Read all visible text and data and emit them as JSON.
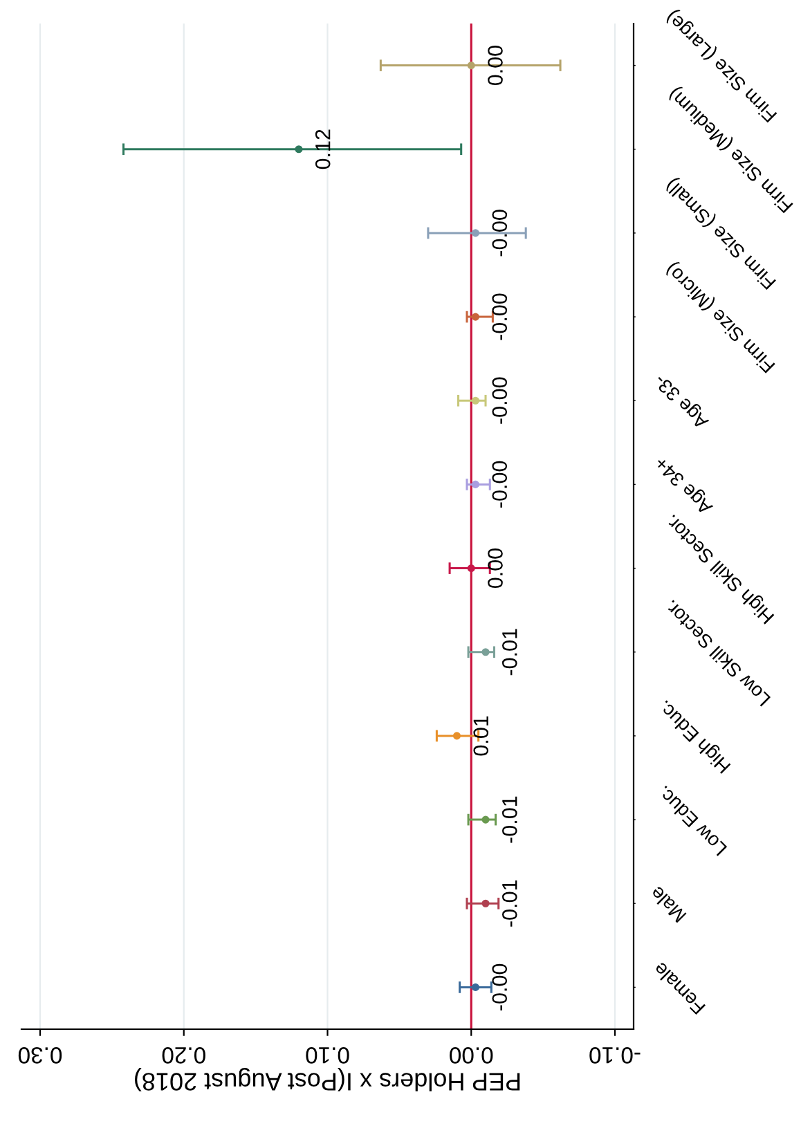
{
  "chart_data": {
    "type": "scatter",
    "orientation": "horizontal",
    "marker": "circle",
    "xlabel": "PEP Holders x I(Post August 2018)",
    "categories": [
      "Firm Size (Large)",
      "Firm Size (Medium)",
      "Firm Size (Small)",
      "Firm Size (Micro)",
      "Age 33-",
      "Age 34+",
      "High Skill Sector.",
      "Low Skill Sector.",
      "High Educ.",
      "Low Educ.",
      "Male",
      "Female"
    ],
    "values": [
      0.0,
      0.12,
      -0.003,
      -0.003,
      -0.003,
      -0.003,
      0.0,
      -0.01,
      0.01,
      -0.01,
      -0.01,
      -0.003
    ],
    "value_labels": [
      "0.00",
      "0.12",
      "-0.00",
      "-0.00",
      "-0.00",
      "-0.00",
      "0.00",
      "-0.01",
      "0.01",
      "-0.01",
      "-0.01",
      "-0.00"
    ],
    "errors": [
      [
        -0.062,
        0.063
      ],
      [
        0.007,
        0.242
      ],
      [
        -0.038,
        0.03
      ],
      [
        -0.015,
        0.003
      ],
      [
        -0.01,
        0.009
      ],
      [
        -0.013,
        0.003
      ],
      [
        -0.013,
        0.015
      ],
      [
        -0.016,
        0.002
      ],
      [
        -0.005,
        0.024
      ],
      [
        -0.017,
        0.002
      ],
      [
        -0.019,
        0.003
      ],
      [
        -0.014,
        0.008
      ]
    ],
    "colors": [
      "#b5a36a",
      "#2e7a5e",
      "#8aa0b8",
      "#c8643c",
      "#c8c87a",
      "#a99ee0",
      "#c8184a",
      "#7aa098",
      "#e8902a",
      "#6a9a50",
      "#b04050",
      "#3a6a9a"
    ],
    "xlim": [
      0.313,
      -0.113
    ],
    "xticks": [
      {
        "value": 0.3,
        "label": "0.30"
      },
      {
        "value": 0.2,
        "label": "0.20"
      },
      {
        "value": 0.1,
        "label": "0.10"
      },
      {
        "value": 0.0,
        "label": "0.00"
      },
      {
        "value": -0.1,
        "label": "-0.10"
      }
    ],
    "grid": "x",
    "legend": false,
    "ref_lines": [
      {
        "axis": "x",
        "value": 0,
        "color": "#c8103a"
      }
    ]
  }
}
